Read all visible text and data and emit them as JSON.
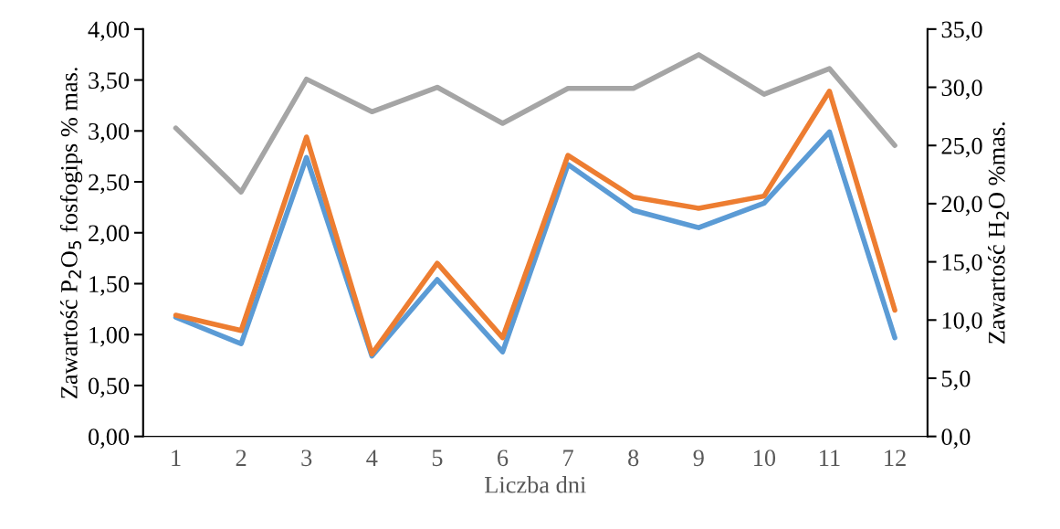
{
  "chart_data": {
    "type": "line",
    "xlabel": "Liczba dni",
    "ylabel": "Zawartość P$_{2}$O$_{5}$ fosfogips % mas.",
    "y2label": "Zawartość H$_{2}$O %mas.",
    "categories": [
      "1",
      "2",
      "3",
      "4",
      "5",
      "6",
      "7",
      "8",
      "9",
      "10",
      "11",
      "12"
    ],
    "series": [
      {
        "color": "#5b9bd5",
        "values": [
          1.17,
          0.91,
          2.74,
          0.79,
          1.54,
          0.83,
          2.67,
          2.22,
          2.05,
          2.29,
          2.99,
          0.97
        ]
      },
      {
        "color": "#ed7d31",
        "values": [
          1.19,
          1.04,
          2.94,
          0.81,
          1.7,
          0.97,
          2.76,
          2.35,
          2.24,
          2.36,
          3.39,
          1.24
        ]
      },
      {
        "color": "#a5a5a5",
        "axis": "y2",
        "values": [
          26.5,
          21.0,
          30.7,
          27.9,
          30.0,
          26.9,
          29.9,
          29.9,
          32.8,
          29.4,
          31.6,
          25.0
        ]
      }
    ],
    "ylim": [
      0,
      4
    ],
    "yticks": [
      {
        "value": 0,
        "label": "0,00"
      },
      {
        "value": 0.5,
        "label": "0,50"
      },
      {
        "value": 1,
        "label": "1,00"
      },
      {
        "value": 1.5,
        "label": "1,50"
      },
      {
        "value": 2,
        "label": "2,00"
      },
      {
        "value": 2.5,
        "label": "2,50"
      },
      {
        "value": 3,
        "label": "3,00"
      },
      {
        "value": 3.5,
        "label": "3,50"
      },
      {
        "value": 4,
        "label": "4,00"
      }
    ],
    "y2lim": [
      0,
      35
    ],
    "y2ticks": [
      {
        "value": 0,
        "label": "0,0"
      },
      {
        "value": 5,
        "label": "5,0"
      },
      {
        "value": 10,
        "label": "10,0"
      },
      {
        "value": 15,
        "label": "15,0"
      },
      {
        "value": 20,
        "label": "20,0"
      },
      {
        "value": 25,
        "label": "25,0"
      },
      {
        "value": 30,
        "label": "30,0"
      },
      {
        "value": 35,
        "label": "35,0"
      }
    ],
    "grid": false,
    "legend": false,
    "marker": "none",
    "line_style": "solid"
  }
}
